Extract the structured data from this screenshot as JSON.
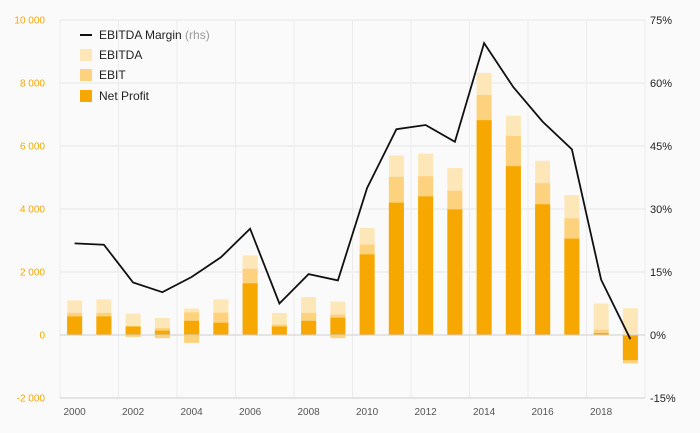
{
  "chart_data": {
    "type": "bar",
    "stacking": "overlay",
    "categories": [
      "2000",
      "2001",
      "2002",
      "2003",
      "2004",
      "2005",
      "2006",
      "2007",
      "2008",
      "2009",
      "2010",
      "2011",
      "2012",
      "2013",
      "2014",
      "2015",
      "2016",
      "2017",
      "2018",
      "2019"
    ],
    "x_tick_labels": [
      "2000",
      "2002",
      "2004",
      "2006",
      "2008",
      "2010",
      "2012",
      "2014",
      "2016",
      "2018"
    ],
    "series": [
      {
        "name": "EBITDA",
        "kind": "bar",
        "axis": "left",
        "color": "#fde7b8",
        "values": [
          1100,
          1130,
          680,
          540,
          840,
          1130,
          2530,
          700,
          1200,
          1060,
          3400,
          5700,
          5760,
          5300,
          8320,
          6960,
          5530,
          4440,
          1000,
          850
        ]
      },
      {
        "name": "EBIT",
        "kind": "bar",
        "axis": "left",
        "color": "#fcd27f",
        "values": [
          700,
          700,
          280,
          220,
          720,
          710,
          2100,
          330,
          700,
          650,
          2870,
          5020,
          5040,
          4580,
          7620,
          6320,
          4820,
          3700,
          170,
          -900
        ]
      },
      {
        "name": "Net Profit",
        "kind": "bar",
        "axis": "left",
        "color": "#f6a800",
        "values": [
          590,
          590,
          270,
          140,
          450,
          390,
          1640,
          270,
          450,
          550,
          2560,
          4200,
          4400,
          3990,
          6820,
          5360,
          4150,
          3060,
          60,
          -800
        ]
      },
      {
        "name": "EBITDA Margin",
        "legend_note": "(rhs)",
        "kind": "line",
        "axis": "right",
        "color": "#111111",
        "values": [
          21.8,
          21.5,
          12.5,
          10.2,
          13.8,
          18.5,
          25.3,
          7.5,
          14.5,
          13.0,
          35.0,
          49.0,
          50.0,
          46.0,
          69.5,
          59.0,
          50.8,
          44.2,
          13.2,
          -1.0
        ]
      },
      {
        "name": "EBIT",
        "kind": "bar-negative",
        "axis": "left",
        "color": "#fcd27f",
        "values": [
          0,
          0,
          -60,
          -100,
          -250,
          0,
          0,
          0,
          0,
          -100,
          0,
          0,
          0,
          0,
          0,
          0,
          0,
          0,
          0,
          0
        ]
      }
    ],
    "y_left": {
      "min": -2000,
      "max": 10000,
      "ticks": [
        -2000,
        0,
        2000,
        4000,
        6000,
        8000,
        10000
      ],
      "tick_labels": [
        "-2 000",
        "0",
        "2 000",
        "4 000",
        "6 000",
        "8 000",
        "10 000"
      ],
      "color": "#f2a900"
    },
    "y_right": {
      "min": -15,
      "max": 75,
      "ticks": [
        -15,
        0,
        15,
        30,
        45,
        60,
        75
      ],
      "tick_labels": [
        "-15%",
        "0%",
        "15%",
        "30%",
        "45%",
        "60%",
        "75%"
      ]
    },
    "grid": true,
    "legend_position": "top-left",
    "title": "",
    "xlabel": "",
    "ylabel": ""
  }
}
